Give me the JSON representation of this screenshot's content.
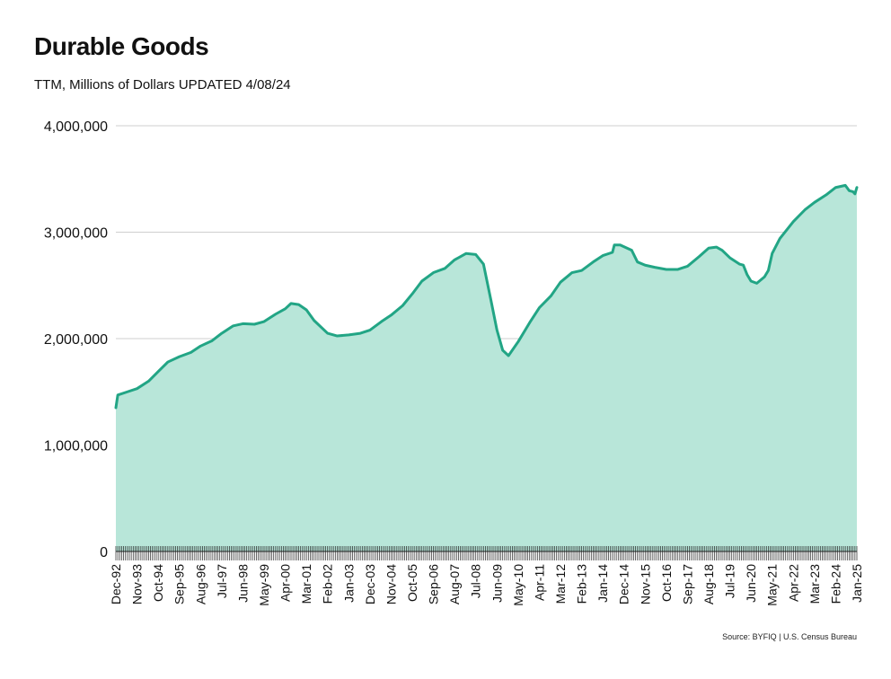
{
  "chart_data": {
    "type": "area",
    "title": "Durable Goods",
    "subtitle": "TTM, Millions of Dollars UPDATED 4/08/24",
    "source": "Source: BYFIQ | U.S. Census Bureau",
    "xlabel": "",
    "ylabel": "",
    "ylim": [
      0,
      4000000
    ],
    "y_ticks": [
      {
        "value": 0,
        "label": "0"
      },
      {
        "value": 1000000,
        "label": "1,000,000"
      },
      {
        "value": 2000000,
        "label": "2,000,000"
      },
      {
        "value": 3000000,
        "label": "3,000,000"
      },
      {
        "value": 4000000,
        "label": "4,000,000"
      }
    ],
    "grid": true,
    "x_start": "1992-12",
    "x_end": "2025-01",
    "x_tick_labels": [
      "Dec-92",
      "Nov-93",
      "Oct-94",
      "Sep-95",
      "Aug-96",
      "Jul-97",
      "Jun-98",
      "May-99",
      "Apr-00",
      "Mar-01",
      "Feb-02",
      "Jan-03",
      "Dec-03",
      "Nov-04",
      "Oct-05",
      "Sep-06",
      "Aug-07",
      "Jul-08",
      "Jun-09",
      "May-10",
      "Apr-11",
      "Mar-12",
      "Feb-13",
      "Jan-14",
      "Dec-14",
      "Nov-15",
      "Oct-16",
      "Sep-17",
      "Aug-18",
      "Jul-19",
      "Jun-20",
      "May-21",
      "Apr-22",
      "Mar-23",
      "Feb-24",
      "Jan-25"
    ],
    "series": [
      {
        "name": "Durable Goods",
        "line_color": "#22a585",
        "fill_color": "#b8e6d9",
        "points": [
          {
            "x": "1992-12",
            "y": 1350000
          },
          {
            "x": "1993-01",
            "y": 1470000
          },
          {
            "x": "1993-06",
            "y": 1500000
          },
          {
            "x": "1993-11",
            "y": 1530000
          },
          {
            "x": "1994-05",
            "y": 1600000
          },
          {
            "x": "1994-10",
            "y": 1690000
          },
          {
            "x": "1995-03",
            "y": 1780000
          },
          {
            "x": "1995-09",
            "y": 1830000
          },
          {
            "x": "1996-03",
            "y": 1870000
          },
          {
            "x": "1996-08",
            "y": 1930000
          },
          {
            "x": "1997-02",
            "y": 1980000
          },
          {
            "x": "1997-07",
            "y": 2050000
          },
          {
            "x": "1998-01",
            "y": 2120000
          },
          {
            "x": "1998-06",
            "y": 2140000
          },
          {
            "x": "1998-12",
            "y": 2135000
          },
          {
            "x": "1999-05",
            "y": 2160000
          },
          {
            "x": "1999-11",
            "y": 2230000
          },
          {
            "x": "2000-04",
            "y": 2280000
          },
          {
            "x": "2000-07",
            "y": 2330000
          },
          {
            "x": "2000-11",
            "y": 2320000
          },
          {
            "x": "2001-03",
            "y": 2270000
          },
          {
            "x": "2001-07",
            "y": 2170000
          },
          {
            "x": "2002-02",
            "y": 2050000
          },
          {
            "x": "2002-07",
            "y": 2025000
          },
          {
            "x": "2003-01",
            "y": 2035000
          },
          {
            "x": "2003-07",
            "y": 2050000
          },
          {
            "x": "2003-12",
            "y": 2080000
          },
          {
            "x": "2004-06",
            "y": 2160000
          },
          {
            "x": "2004-11",
            "y": 2220000
          },
          {
            "x": "2005-05",
            "y": 2310000
          },
          {
            "x": "2005-10",
            "y": 2420000
          },
          {
            "x": "2006-03",
            "y": 2540000
          },
          {
            "x": "2006-09",
            "y": 2620000
          },
          {
            "x": "2007-03",
            "y": 2660000
          },
          {
            "x": "2007-08",
            "y": 2740000
          },
          {
            "x": "2008-02",
            "y": 2800000
          },
          {
            "x": "2008-07",
            "y": 2790000
          },
          {
            "x": "2008-11",
            "y": 2700000
          },
          {
            "x": "2009-03",
            "y": 2350000
          },
          {
            "x": "2009-06",
            "y": 2080000
          },
          {
            "x": "2009-09",
            "y": 1890000
          },
          {
            "x": "2009-12",
            "y": 1840000
          },
          {
            "x": "2010-05",
            "y": 1970000
          },
          {
            "x": "2010-11",
            "y": 2150000
          },
          {
            "x": "2011-04",
            "y": 2290000
          },
          {
            "x": "2011-10",
            "y": 2400000
          },
          {
            "x": "2012-03",
            "y": 2530000
          },
          {
            "x": "2012-09",
            "y": 2620000
          },
          {
            "x": "2013-02",
            "y": 2640000
          },
          {
            "x": "2013-08",
            "y": 2720000
          },
          {
            "x": "2014-01",
            "y": 2780000
          },
          {
            "x": "2014-06",
            "y": 2810000
          },
          {
            "x": "2014-07",
            "y": 2880000
          },
          {
            "x": "2014-10",
            "y": 2880000
          },
          {
            "x": "2015-04",
            "y": 2830000
          },
          {
            "x": "2015-07",
            "y": 2720000
          },
          {
            "x": "2015-11",
            "y": 2690000
          },
          {
            "x": "2016-04",
            "y": 2670000
          },
          {
            "x": "2016-10",
            "y": 2650000
          },
          {
            "x": "2017-04",
            "y": 2650000
          },
          {
            "x": "2017-09",
            "y": 2680000
          },
          {
            "x": "2018-03",
            "y": 2770000
          },
          {
            "x": "2018-08",
            "y": 2850000
          },
          {
            "x": "2018-12",
            "y": 2860000
          },
          {
            "x": "2019-03",
            "y": 2830000
          },
          {
            "x": "2019-07",
            "y": 2760000
          },
          {
            "x": "2019-12",
            "y": 2700000
          },
          {
            "x": "2020-02",
            "y": 2690000
          },
          {
            "x": "2020-04",
            "y": 2600000
          },
          {
            "x": "2020-06",
            "y": 2540000
          },
          {
            "x": "2020-09",
            "y": 2520000
          },
          {
            "x": "2021-01",
            "y": 2580000
          },
          {
            "x": "2021-03",
            "y": 2640000
          },
          {
            "x": "2021-05",
            "y": 2800000
          },
          {
            "x": "2021-09",
            "y": 2940000
          },
          {
            "x": "2022-04",
            "y": 3100000
          },
          {
            "x": "2022-10",
            "y": 3210000
          },
          {
            "x": "2023-03",
            "y": 3280000
          },
          {
            "x": "2023-09",
            "y": 3350000
          },
          {
            "x": "2024-02",
            "y": 3420000
          },
          {
            "x": "2024-07",
            "y": 3440000
          },
          {
            "x": "2024-09",
            "y": 3390000
          },
          {
            "x": "2024-11",
            "y": 3380000
          },
          {
            "x": "2024-12",
            "y": 3360000
          },
          {
            "x": "2025-01",
            "y": 3420000
          }
        ]
      }
    ]
  }
}
